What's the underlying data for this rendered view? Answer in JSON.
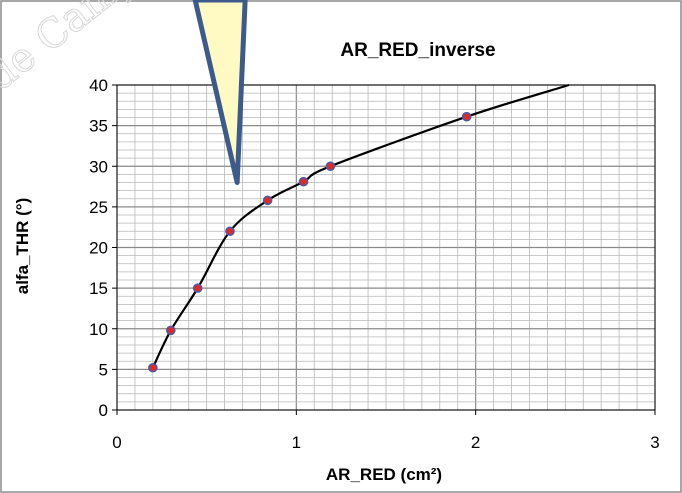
{
  "chart_data": {
    "type": "scatter",
    "title": "AR_RED_inverse",
    "xlabel": "AR_RED (cm²)",
    "ylabel": "alfa_THR (°)",
    "xlim": [
      0,
      3
    ],
    "ylim": [
      0,
      40
    ],
    "x_ticks": [
      "0",
      "1",
      "2",
      "3"
    ],
    "y_ticks": [
      "0",
      "5",
      "10",
      "15",
      "20",
      "25",
      "30",
      "35",
      "40"
    ],
    "grid": true,
    "legend": "none",
    "series": [
      {
        "x": [
          0.2,
          0.3,
          0.45,
          0.63,
          0.84,
          1.04,
          1.19,
          1.95
        ],
        "y": [
          5.2,
          9.8,
          15.0,
          22.0,
          25.8,
          28.1,
          30.0,
          36.1
        ],
        "marker_color": "#e02a2a",
        "marker_edge_color": "#4a5aa8",
        "line_color": "#000000"
      }
    ],
    "trend_line_end": {
      "x": 2.52,
      "y": 40
    },
    "callout": {
      "fill": "#fff9c4",
      "stroke": "#3d5a8c",
      "tip": {
        "x": 0.67,
        "y": 28.0
      }
    }
  },
  "watermark": {
    "text": "de Campeo"
  }
}
